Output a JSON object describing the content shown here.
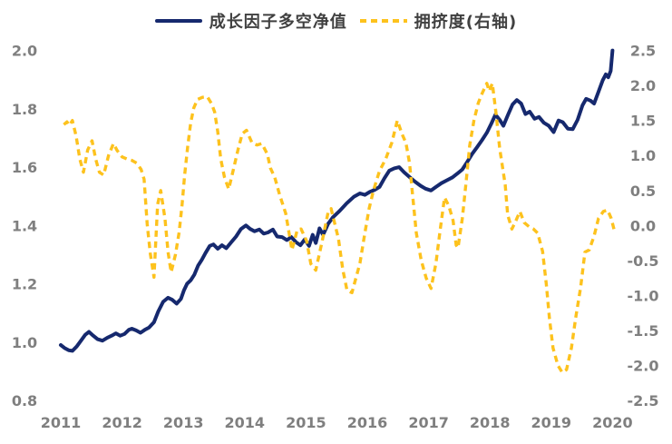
{
  "legend": {
    "series1_label": "成长因子多空净值",
    "series2_label": "拥挤度(右轴)"
  },
  "colors": {
    "series1": "#16296e",
    "series2": "#fdc21d",
    "axis_text": "#7f7f7f",
    "legend_text": "#404040",
    "background": "#ffffff"
  },
  "chart_data": {
    "type": "line",
    "grid": false,
    "legend_position": "top",
    "x_axis": {
      "ticks": [
        "2011",
        "2012",
        "2013",
        "2014",
        "2015",
        "2016",
        "2017",
        "2018",
        "2019",
        "2020"
      ],
      "range": [
        2011,
        2020
      ]
    },
    "y_left": {
      "ticks": [
        "2.0",
        "1.8",
        "1.6",
        "1.4",
        "1.2",
        "1.0",
        "0.8"
      ],
      "range": [
        0.8,
        2.0
      ]
    },
    "y_right": {
      "ticks": [
        "2.5",
        "2.0",
        "1.5",
        "1.0",
        "0.5",
        "0.0",
        "-0.5",
        "-1.0",
        "-1.5",
        "-2.0",
        "-2.5"
      ],
      "range": [
        -2.5,
        2.5
      ]
    },
    "series": [
      {
        "name": "成长因子多空净值",
        "axis": "left",
        "style": "solid",
        "color": "#16296e",
        "points": [
          [
            2011.0,
            0.99
          ],
          [
            2011.06,
            0.98
          ],
          [
            2011.13,
            0.972
          ],
          [
            2011.19,
            0.97
          ],
          [
            2011.26,
            0.985
          ],
          [
            2011.33,
            1.005
          ],
          [
            2011.4,
            1.025
          ],
          [
            2011.46,
            1.035
          ],
          [
            2011.53,
            1.022
          ],
          [
            2011.6,
            1.01
          ],
          [
            2011.68,
            1.005
          ],
          [
            2011.76,
            1.015
          ],
          [
            2011.83,
            1.022
          ],
          [
            2011.9,
            1.03
          ],
          [
            2011.97,
            1.022
          ],
          [
            2012.04,
            1.028
          ],
          [
            2012.11,
            1.042
          ],
          [
            2012.16,
            1.046
          ],
          [
            2012.23,
            1.04
          ],
          [
            2012.3,
            1.032
          ],
          [
            2012.37,
            1.042
          ],
          [
            2012.44,
            1.05
          ],
          [
            2012.52,
            1.068
          ],
          [
            2012.59,
            1.105
          ],
          [
            2012.67,
            1.138
          ],
          [
            2012.75,
            1.152
          ],
          [
            2012.82,
            1.145
          ],
          [
            2012.89,
            1.132
          ],
          [
            2012.96,
            1.148
          ],
          [
            2013.01,
            1.178
          ],
          [
            2013.06,
            1.2
          ],
          [
            2013.12,
            1.212
          ],
          [
            2013.18,
            1.232
          ],
          [
            2013.24,
            1.262
          ],
          [
            2013.3,
            1.282
          ],
          [
            2013.36,
            1.305
          ],
          [
            2013.43,
            1.33
          ],
          [
            2013.49,
            1.335
          ],
          [
            2013.56,
            1.32
          ],
          [
            2013.63,
            1.332
          ],
          [
            2013.7,
            1.322
          ],
          [
            2013.78,
            1.342
          ],
          [
            2013.86,
            1.362
          ],
          [
            2013.94,
            1.388
          ],
          [
            2014.02,
            1.4
          ],
          [
            2014.09,
            1.388
          ],
          [
            2014.16,
            1.38
          ],
          [
            2014.24,
            1.386
          ],
          [
            2014.31,
            1.372
          ],
          [
            2014.38,
            1.376
          ],
          [
            2014.46,
            1.386
          ],
          [
            2014.53,
            1.362
          ],
          [
            2014.61,
            1.36
          ],
          [
            2014.69,
            1.35
          ],
          [
            2014.76,
            1.36
          ],
          [
            2014.84,
            1.342
          ],
          [
            2014.91,
            1.332
          ],
          [
            2014.98,
            1.352
          ],
          [
            2015.05,
            1.33
          ],
          [
            2015.11,
            1.368
          ],
          [
            2015.16,
            1.34
          ],
          [
            2015.22,
            1.39
          ],
          [
            2015.28,
            1.368
          ],
          [
            2015.36,
            1.405
          ],
          [
            2015.44,
            1.428
          ],
          [
            2015.55,
            1.45
          ],
          [
            2015.66,
            1.475
          ],
          [
            2015.78,
            1.498
          ],
          [
            2015.88,
            1.51
          ],
          [
            2015.96,
            1.505
          ],
          [
            2016.04,
            1.515
          ],
          [
            2016.12,
            1.522
          ],
          [
            2016.2,
            1.532
          ],
          [
            2016.28,
            1.562
          ],
          [
            2016.36,
            1.588
          ],
          [
            2016.44,
            1.596
          ],
          [
            2016.52,
            1.6
          ],
          [
            2016.6,
            1.582
          ],
          [
            2016.69,
            1.566
          ],
          [
            2016.78,
            1.55
          ],
          [
            2016.87,
            1.536
          ],
          [
            2016.95,
            1.526
          ],
          [
            2017.04,
            1.52
          ],
          [
            2017.12,
            1.532
          ],
          [
            2017.21,
            1.545
          ],
          [
            2017.3,
            1.555
          ],
          [
            2017.39,
            1.565
          ],
          [
            2017.47,
            1.578
          ],
          [
            2017.55,
            1.592
          ],
          [
            2017.63,
            1.618
          ],
          [
            2017.71,
            1.645
          ],
          [
            2017.79,
            1.668
          ],
          [
            2017.87,
            1.692
          ],
          [
            2017.95,
            1.718
          ],
          [
            2018.02,
            1.748
          ],
          [
            2018.09,
            1.78
          ],
          [
            2018.16,
            1.762
          ],
          [
            2018.22,
            1.742
          ],
          [
            2018.3,
            1.782
          ],
          [
            2018.37,
            1.815
          ],
          [
            2018.44,
            1.83
          ],
          [
            2018.51,
            1.818
          ],
          [
            2018.58,
            1.782
          ],
          [
            2018.65,
            1.79
          ],
          [
            2018.73,
            1.766
          ],
          [
            2018.8,
            1.772
          ],
          [
            2018.88,
            1.752
          ],
          [
            2018.96,
            1.742
          ],
          [
            2019.04,
            1.72
          ],
          [
            2019.12,
            1.76
          ],
          [
            2019.19,
            1.754
          ],
          [
            2019.27,
            1.732
          ],
          [
            2019.35,
            1.73
          ],
          [
            2019.43,
            1.762
          ],
          [
            2019.51,
            1.812
          ],
          [
            2019.57,
            1.834
          ],
          [
            2019.64,
            1.828
          ],
          [
            2019.7,
            1.818
          ],
          [
            2019.77,
            1.858
          ],
          [
            2019.84,
            1.898
          ],
          [
            2019.89,
            1.918
          ],
          [
            2019.93,
            1.908
          ],
          [
            2019.97,
            1.93
          ],
          [
            2020.0,
            2.0
          ]
        ]
      },
      {
        "name": "拥挤度(右轴)",
        "axis": "right",
        "style": "dashed",
        "color": "#fdc21d",
        "points": [
          [
            2011.05,
            1.44
          ],
          [
            2011.1,
            1.48
          ],
          [
            2011.14,
            1.43
          ],
          [
            2011.19,
            1.5
          ],
          [
            2011.25,
            1.28
          ],
          [
            2011.31,
            0.95
          ],
          [
            2011.37,
            0.76
          ],
          [
            2011.44,
            1.08
          ],
          [
            2011.51,
            1.21
          ],
          [
            2011.57,
            0.95
          ],
          [
            2011.63,
            0.76
          ],
          [
            2011.7,
            0.72
          ],
          [
            2011.78,
            1.0
          ],
          [
            2011.86,
            1.17
          ],
          [
            2011.92,
            1.07
          ],
          [
            2012.0,
            0.98
          ],
          [
            2012.08,
            0.95
          ],
          [
            2012.16,
            0.93
          ],
          [
            2012.24,
            0.89
          ],
          [
            2012.31,
            0.8
          ],
          [
            2012.36,
            0.66
          ],
          [
            2012.41,
            0.02
          ],
          [
            2012.46,
            -0.4
          ],
          [
            2012.52,
            -0.74
          ],
          [
            2012.58,
            0.3
          ],
          [
            2012.63,
            0.5
          ],
          [
            2012.7,
            0.1
          ],
          [
            2012.75,
            -0.38
          ],
          [
            2012.8,
            -0.67
          ],
          [
            2012.87,
            -0.42
          ],
          [
            2012.93,
            -0.1
          ],
          [
            2012.98,
            0.3
          ],
          [
            2013.02,
            0.72
          ],
          [
            2013.07,
            1.12
          ],
          [
            2013.12,
            1.47
          ],
          [
            2013.17,
            1.68
          ],
          [
            2013.23,
            1.8
          ],
          [
            2013.31,
            1.83
          ],
          [
            2013.39,
            1.84
          ],
          [
            2013.46,
            1.74
          ],
          [
            2013.51,
            1.62
          ],
          [
            2013.56,
            1.34
          ],
          [
            2013.61,
            0.95
          ],
          [
            2013.67,
            0.69
          ],
          [
            2013.74,
            0.52
          ],
          [
            2013.81,
            0.78
          ],
          [
            2013.89,
            1.08
          ],
          [
            2013.96,
            1.31
          ],
          [
            2014.03,
            1.36
          ],
          [
            2014.12,
            1.18
          ],
          [
            2014.2,
            1.15
          ],
          [
            2014.28,
            1.17
          ],
          [
            2014.37,
            1.02
          ],
          [
            2014.42,
            0.82
          ],
          [
            2014.49,
            0.69
          ],
          [
            2014.57,
            0.44
          ],
          [
            2014.67,
            0.17
          ],
          [
            2014.77,
            -0.35
          ],
          [
            2014.86,
            -0.06
          ],
          [
            2014.92,
            -0.05
          ],
          [
            2015.01,
            -0.22
          ],
          [
            2015.08,
            -0.55
          ],
          [
            2015.16,
            -0.64
          ],
          [
            2015.26,
            -0.24
          ],
          [
            2015.36,
            0.18
          ],
          [
            2015.41,
            0.24
          ],
          [
            2015.53,
            -0.19
          ],
          [
            2015.6,
            -0.63
          ],
          [
            2015.67,
            -0.93
          ],
          [
            2015.75,
            -0.96
          ],
          [
            2015.88,
            -0.54
          ],
          [
            2015.96,
            -0.11
          ],
          [
            2016.03,
            0.24
          ],
          [
            2016.1,
            0.5
          ],
          [
            2016.2,
            0.78
          ],
          [
            2016.3,
            0.95
          ],
          [
            2016.4,
            1.18
          ],
          [
            2016.49,
            1.5
          ],
          [
            2016.57,
            1.3
          ],
          [
            2016.63,
            1.18
          ],
          [
            2016.69,
            0.89
          ],
          [
            2016.74,
            0.43
          ],
          [
            2016.8,
            -0.11
          ],
          [
            2016.88,
            -0.5
          ],
          [
            2016.96,
            -0.75
          ],
          [
            2017.04,
            -0.9
          ],
          [
            2017.12,
            -0.54
          ],
          [
            2017.19,
            -0.06
          ],
          [
            2017.26,
            0.4
          ],
          [
            2017.33,
            0.28
          ],
          [
            2017.4,
            0.07
          ],
          [
            2017.45,
            -0.28
          ],
          [
            2017.48,
            -0.32
          ],
          [
            2017.55,
            0.1
          ],
          [
            2017.61,
            0.6
          ],
          [
            2017.67,
            1.14
          ],
          [
            2017.74,
            1.5
          ],
          [
            2017.81,
            1.75
          ],
          [
            2017.88,
            1.9
          ],
          [
            2017.95,
            2.03
          ],
          [
            2017.99,
            1.92
          ],
          [
            2018.04,
            2.03
          ],
          [
            2018.1,
            1.6
          ],
          [
            2018.16,
            1.1
          ],
          [
            2018.25,
            0.58
          ],
          [
            2018.29,
            0.15
          ],
          [
            2018.36,
            -0.05
          ],
          [
            2018.43,
            0.08
          ],
          [
            2018.49,
            0.2
          ],
          [
            2018.56,
            0.04
          ],
          [
            2018.64,
            -0.02
          ],
          [
            2018.71,
            -0.05
          ],
          [
            2018.78,
            -0.11
          ],
          [
            2018.86,
            -0.37
          ],
          [
            2018.92,
            -0.84
          ],
          [
            2018.97,
            -1.32
          ],
          [
            2019.03,
            -1.75
          ],
          [
            2019.11,
            -2.0
          ],
          [
            2019.18,
            -2.1
          ],
          [
            2019.25,
            -2.06
          ],
          [
            2019.33,
            -1.75
          ],
          [
            2019.4,
            -1.32
          ],
          [
            2019.48,
            -0.89
          ],
          [
            2019.55,
            -0.38
          ],
          [
            2019.62,
            -0.35
          ],
          [
            2019.7,
            -0.15
          ],
          [
            2019.77,
            0.1
          ],
          [
            2019.85,
            0.2
          ],
          [
            2019.92,
            0.22
          ],
          [
            2019.98,
            0.1
          ],
          [
            2020.04,
            -0.11
          ]
        ]
      }
    ]
  }
}
